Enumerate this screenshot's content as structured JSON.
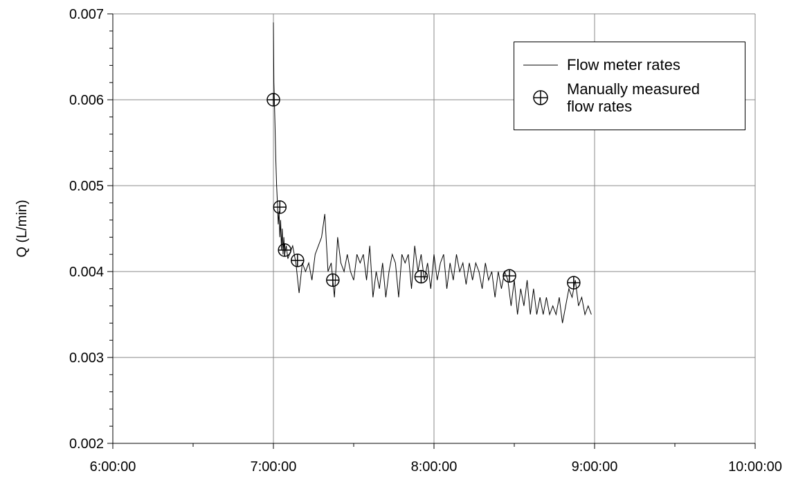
{
  "chart_data": {
    "type": "line",
    "ylabel": "Q (L/min)",
    "xlim": [
      6,
      10
    ],
    "xticks": [
      {
        "value": 6,
        "label": "6:00:00"
      },
      {
        "value": 7,
        "label": "7:00:00"
      },
      {
        "value": 8,
        "label": "8:00:00"
      },
      {
        "value": 9,
        "label": "9:00:00"
      },
      {
        "value": 10,
        "label": "10:00:00"
      }
    ],
    "xminor_ticks": [
      6.5,
      7.5,
      8.5,
      9.5
    ],
    "ylim": [
      0.002,
      0.007
    ],
    "yticks": [
      0.002,
      0.003,
      0.004,
      0.005,
      0.006,
      0.007
    ],
    "yminor_ticks": [
      0.0022,
      0.0024,
      0.0026,
      0.0028,
      0.0032,
      0.0034,
      0.0036,
      0.0038,
      0.0042,
      0.0044,
      0.0046,
      0.0048,
      0.0052,
      0.0054,
      0.0056,
      0.0058,
      0.0062,
      0.0064,
      0.0066,
      0.0068
    ],
    "grid": true,
    "legend": "upper right",
    "series": [
      {
        "name": "Flow meter rates",
        "kind": "line",
        "color": "#000000",
        "x": [
          7.0,
          7.003,
          7.006,
          7.01,
          7.015,
          7.02,
          7.025,
          7.03,
          7.035,
          7.04,
          7.045,
          7.05,
          7.055,
          7.06,
          7.065,
          7.07,
          7.08,
          7.09,
          7.1,
          7.12,
          7.14,
          7.16,
          7.18,
          7.2,
          7.22,
          7.24,
          7.26,
          7.28,
          7.3,
          7.32,
          7.34,
          7.36,
          7.38,
          7.4,
          7.42,
          7.44,
          7.46,
          7.48,
          7.5,
          7.52,
          7.54,
          7.56,
          7.58,
          7.6,
          7.62,
          7.64,
          7.66,
          7.68,
          7.7,
          7.72,
          7.74,
          7.76,
          7.78,
          7.8,
          7.82,
          7.84,
          7.86,
          7.88,
          7.9,
          7.92,
          7.94,
          7.96,
          7.98,
          8.0,
          8.02,
          8.04,
          8.06,
          8.08,
          8.1,
          8.12,
          8.14,
          8.16,
          8.18,
          8.2,
          8.22,
          8.24,
          8.26,
          8.28,
          8.3,
          8.32,
          8.34,
          8.36,
          8.38,
          8.4,
          8.42,
          8.44,
          8.46,
          8.48,
          8.5,
          8.52,
          8.54,
          8.56,
          8.58,
          8.6,
          8.62,
          8.64,
          8.66,
          8.68,
          8.7,
          8.72,
          8.74,
          8.76,
          8.78,
          8.8,
          8.82,
          8.84,
          8.86,
          8.88,
          8.9,
          8.92,
          8.94,
          8.96,
          8.98
        ],
        "values": [
          0.0069,
          0.0062,
          0.006,
          0.0057,
          0.0053,
          0.005,
          0.0048,
          0.00455,
          0.0047,
          0.0044,
          0.0046,
          0.00425,
          0.0045,
          0.0042,
          0.0044,
          0.0042,
          0.0043,
          0.00415,
          0.0042,
          0.0043,
          0.0041,
          0.00375,
          0.0041,
          0.004,
          0.0041,
          0.0039,
          0.0042,
          0.0043,
          0.0044,
          0.00467,
          0.004,
          0.0041,
          0.0037,
          0.0044,
          0.0041,
          0.004,
          0.0042,
          0.004,
          0.0039,
          0.0042,
          0.0041,
          0.0042,
          0.0039,
          0.0043,
          0.0037,
          0.004,
          0.0038,
          0.0041,
          0.0037,
          0.004,
          0.0042,
          0.0041,
          0.0037,
          0.0042,
          0.0041,
          0.0042,
          0.0038,
          0.0043,
          0.004,
          0.0042,
          0.0039,
          0.0041,
          0.0038,
          0.0042,
          0.0039,
          0.0041,
          0.0042,
          0.0038,
          0.0041,
          0.0039,
          0.0042,
          0.004,
          0.0041,
          0.00385,
          0.0041,
          0.0039,
          0.0041,
          0.004,
          0.0038,
          0.0041,
          0.0039,
          0.004,
          0.0037,
          0.004,
          0.0038,
          0.004,
          0.0039,
          0.0036,
          0.0039,
          0.0035,
          0.0038,
          0.0036,
          0.0039,
          0.0035,
          0.0038,
          0.0035,
          0.0037,
          0.0035,
          0.0037,
          0.0035,
          0.0036,
          0.0035,
          0.0037,
          0.0034,
          0.0036,
          0.0038,
          0.0037,
          0.0039,
          0.0036,
          0.0037,
          0.0035,
          0.0036,
          0.0035
        ]
      },
      {
        "name": "Manually measured flow rates",
        "kind": "marker",
        "color": "#000000",
        "x": [
          7.0,
          7.04,
          7.07,
          7.15,
          7.37,
          7.92,
          8.47,
          8.87
        ],
        "values": [
          0.006,
          0.00475,
          0.00425,
          0.00413,
          0.0039,
          0.00394,
          0.00395,
          0.00387
        ]
      }
    ]
  }
}
